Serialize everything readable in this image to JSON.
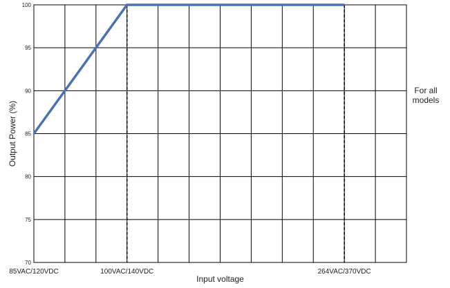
{
  "chart_data": {
    "type": "line",
    "title": "",
    "xlabel": "Input voltage",
    "ylabel": "Output Power (%)",
    "ylim": [
      70,
      100
    ],
    "yticks": [
      70,
      75,
      80,
      85,
      90,
      95,
      100
    ],
    "xlim": [
      0,
      12
    ],
    "x_tick_labels": [
      {
        "x": 0,
        "label": "85VAC/120VDC"
      },
      {
        "x": 3,
        "label": "100VAC/140VDC"
      },
      {
        "x": 10,
        "label": "264VAC/370VDC"
      }
    ],
    "reference_lines": [
      3,
      10
    ],
    "grid": true,
    "series": [
      {
        "color": "#4a72b0",
        "points": [
          {
            "x": 0,
            "y": 85
          },
          {
            "x": 3,
            "y": 100
          },
          {
            "x": 10,
            "y": 100
          }
        ]
      }
    ]
  },
  "side_note": {
    "line1": "For all",
    "line2": "models"
  }
}
